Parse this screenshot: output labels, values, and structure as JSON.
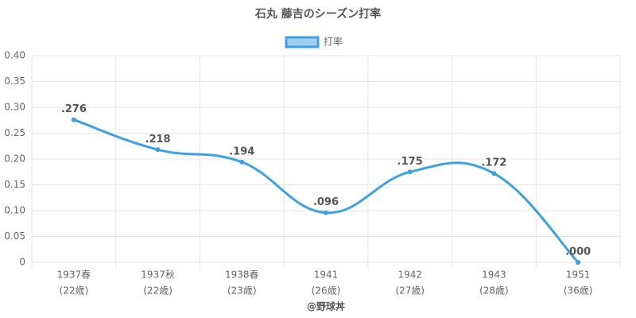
{
  "chart_data": {
    "type": "line",
    "title": "石丸 藤吉のシーズン打率",
    "credit": "@野球丼",
    "categories": [
      [
        "1937春",
        "(22歳)"
      ],
      [
        "1937秋",
        "(22歳)"
      ],
      [
        "1938春",
        "(23歳)"
      ],
      [
        "1941",
        "(26歳)"
      ],
      [
        "1942",
        "(27歳)"
      ],
      [
        "1943",
        "(28歳)"
      ],
      [
        "1951",
        "(36歳)"
      ]
    ],
    "series": [
      {
        "name": "打率",
        "color": "#3ea0e4",
        "values": [
          0.276,
          0.218,
          0.194,
          0.096,
          0.175,
          0.172,
          0.0
        ],
        "value_labels": [
          ".276",
          ".218",
          ".194",
          ".096",
          ".175",
          ".172",
          ".000"
        ]
      }
    ],
    "ylim": [
      0,
      0.4
    ],
    "yticks": [
      0,
      0.05,
      {
        "value": 0.1,
        "label": "0.10"
      },
      0.15,
      {
        "value": 0.2,
        "label": "0.20"
      },
      0.25,
      {
        "value": 0.3,
        "label": "0.30"
      },
      0.35,
      {
        "value": 0.4,
        "label": "0.40"
      }
    ],
    "grid": true,
    "legend": "top"
  }
}
